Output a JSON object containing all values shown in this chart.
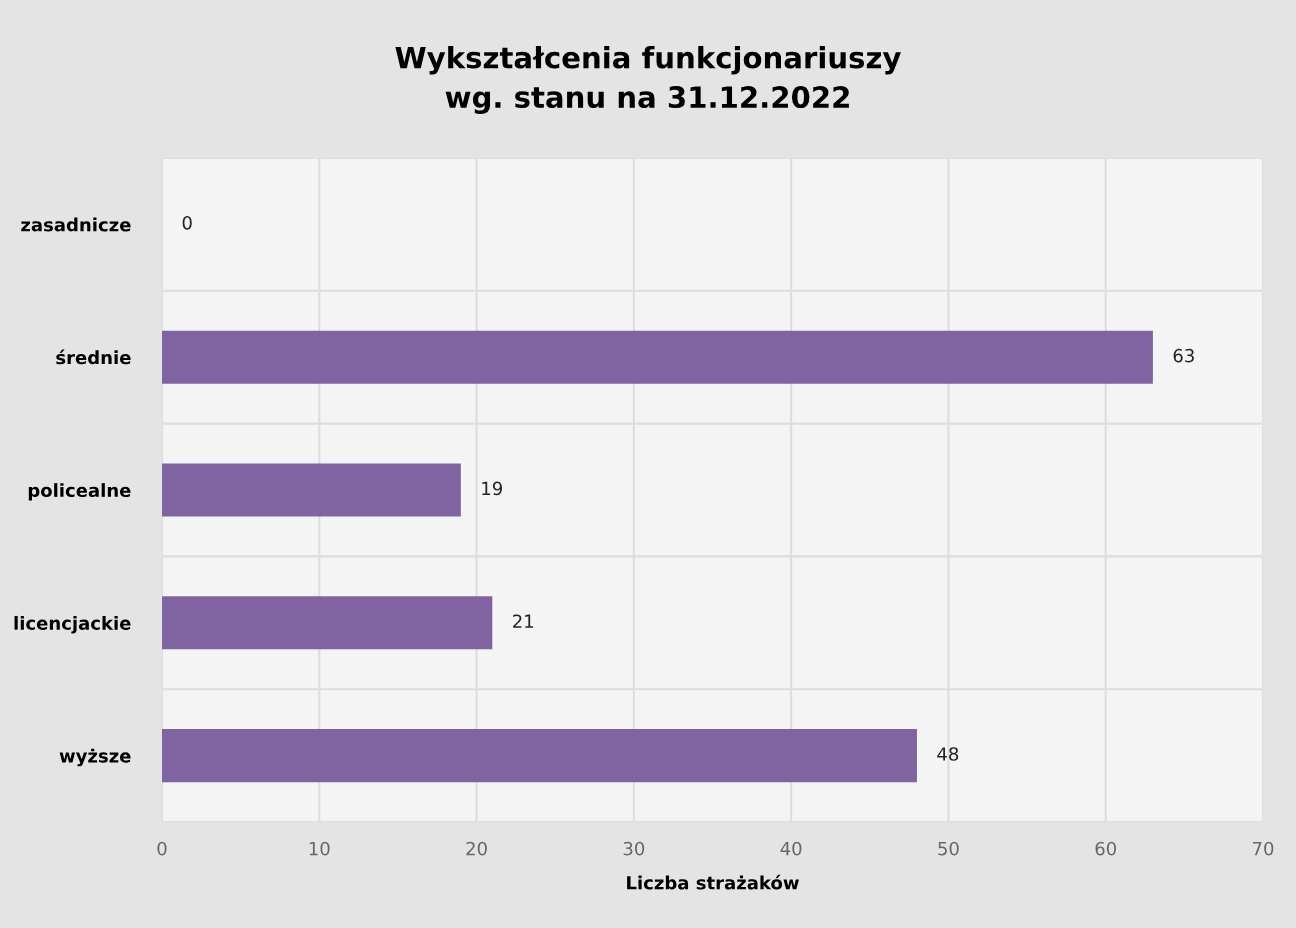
{
  "chart_data": {
    "type": "bar",
    "orientation": "horizontal",
    "title": "Wykształcenia funkcjonariuszy\nwg. stanu na 31.12.2022",
    "xlabel": "Liczba strażaków",
    "categories": [
      "zasadnicze",
      "średnie",
      "policealne",
      "licencjackie",
      "wyższe"
    ],
    "values": [
      0,
      63,
      19,
      21,
      48
    ],
    "color": "#8064a2",
    "xlim": [
      0,
      70
    ],
    "xticks": [
      0,
      10,
      20,
      30,
      40,
      50,
      60,
      70
    ],
    "grid": true,
    "data_labels": true
  }
}
